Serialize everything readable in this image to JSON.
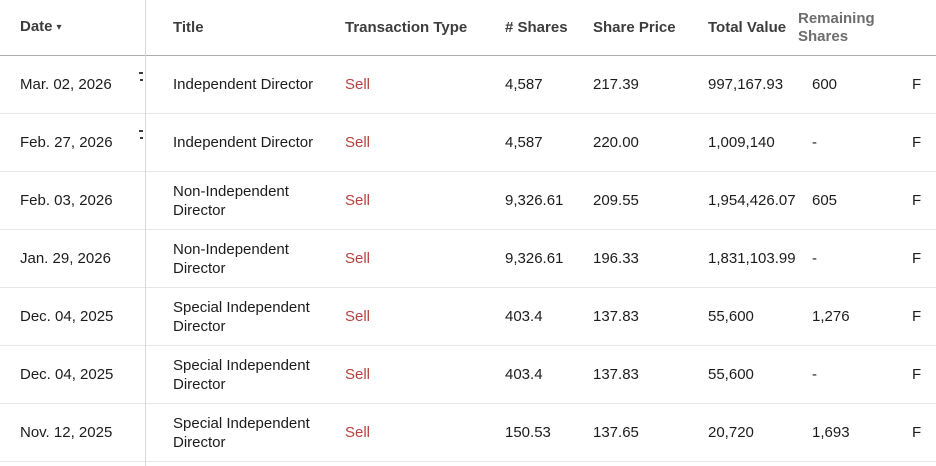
{
  "colors": {
    "sell_red": "#b6413e",
    "header_text": "#3d3d3d",
    "remaining_header_text": "#6e6e6e",
    "body_text": "#1c1c1c",
    "header_border": "#adadad",
    "row_border": "#e7e7e7",
    "column_divider": "#d8d8d8"
  },
  "table": {
    "sort_indicator": "▾",
    "headers": {
      "date": "Date",
      "title": "Title",
      "type": "Transaction Type",
      "shares": "# Shares",
      "price": "Share Price",
      "value": "Total Value",
      "remaining": "Remaining Shares"
    },
    "rows": [
      {
        "date": "Mar. 02, 2026",
        "title": "Independent Director",
        "type": "Sell",
        "shares": "4,587",
        "price": "217.39",
        "value": "997,167.93",
        "remaining": "600",
        "filing": "F"
      },
      {
        "date": "Feb. 27, 2026",
        "title": "Independent Director",
        "type": "Sell",
        "shares": "4,587",
        "price": "220.00",
        "value": "1,009,140",
        "remaining": "-",
        "filing": "F"
      },
      {
        "date": "Feb. 03, 2026",
        "title": "Non-Independent Director",
        "type": "Sell",
        "shares": "9,326.61",
        "price": "209.55",
        "value": "1,954,426.07",
        "remaining": "605",
        "filing": "F"
      },
      {
        "date": "Jan. 29, 2026",
        "title": "Non-Independent Director",
        "type": "Sell",
        "shares": "9,326.61",
        "price": "196.33",
        "value": "1,831,103.99",
        "remaining": "-",
        "filing": "F"
      },
      {
        "date": "Dec. 04, 2025",
        "title": "Special Independent Director",
        "type": "Sell",
        "shares": "403.4",
        "price": "137.83",
        "value": "55,600",
        "remaining": "1,276",
        "filing": "F"
      },
      {
        "date": "Dec. 04, 2025",
        "title": "Special Independent Director",
        "type": "Sell",
        "shares": "403.4",
        "price": "137.83",
        "value": "55,600",
        "remaining": "-",
        "filing": "F"
      },
      {
        "date": "Nov. 12, 2025",
        "title": "Special Independent Director",
        "type": "Sell",
        "shares": "150.53",
        "price": "137.65",
        "value": "20,720",
        "remaining": "1,693",
        "filing": "F"
      }
    ]
  }
}
